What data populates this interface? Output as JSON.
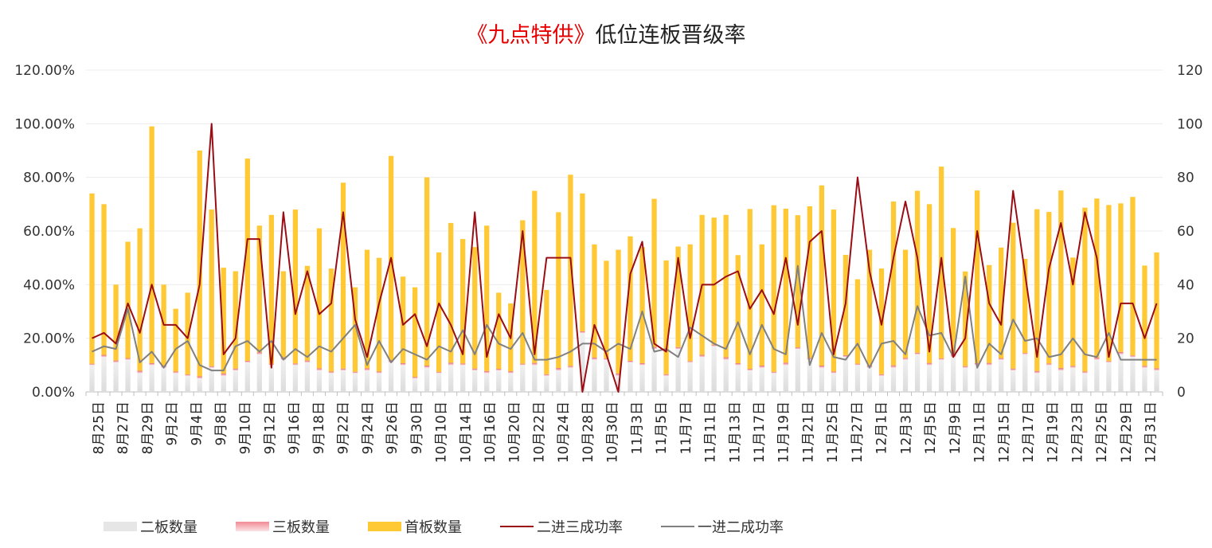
{
  "title": {
    "highlight": "《九点特供》",
    "rest": "低位连板晋级率"
  },
  "colors": {
    "erban": "#e6e6e6",
    "sanban": "#f2a0a6",
    "shouban": "#ffc935",
    "line23": "#9b0d14",
    "line12": "#808080"
  },
  "legend": {
    "erban": "二板数量",
    "sanban": "三板数量",
    "shouban": "首板数量",
    "line23": "二进三成功率",
    "line12": "一进二成功率"
  },
  "chart_data": {
    "type": "bar",
    "stacked": true,
    "y_left": {
      "min": 0,
      "max": 1.2,
      "ticks": [
        "0.00%",
        "20.00%",
        "40.00%",
        "60.00%",
        "80.00%",
        "100.00%",
        "120.00%"
      ]
    },
    "y_right": {
      "min": 0,
      "max": 120,
      "ticks": [
        "0",
        "20",
        "40",
        "60",
        "80",
        "100",
        "120"
      ]
    },
    "x_tick_labels": [
      "8月25日",
      "8月27日",
      "8月29日",
      "9月2日",
      "9月4日",
      "9月8日",
      "9月10日",
      "9月12日",
      "9月16日",
      "9月18日",
      "9月22日",
      "9月24日",
      "9月26日",
      "9月30日",
      "10月10日",
      "10月14日",
      "10月16日",
      "10月20日",
      "10月22日",
      "10月24日",
      "10月28日",
      "10月30日",
      "11月3日",
      "11月5日",
      "11月7日",
      "11月11日",
      "11月13日",
      "11月17日",
      "11月19日",
      "11月21日",
      "11月25日",
      "11月27日",
      "12月1日",
      "12月3日",
      "12月5日",
      "12月9日",
      "12月11日",
      "12月15日",
      "12月17日",
      "12月19日",
      "12月23日",
      "12月25日",
      "12月29日",
      "12月31日"
    ],
    "series": [
      {
        "name": "二板数量",
        "kind": "bar",
        "axis": "right",
        "values": [
          10,
          13,
          11,
          12,
          7,
          10,
          9,
          7,
          6,
          5,
          9,
          6,
          8,
          11,
          14,
          10,
          12,
          10,
          11,
          8,
          7,
          8,
          7,
          8,
          7,
          11,
          10,
          5,
          9,
          7,
          10,
          10,
          8,
          7,
          8,
          7,
          10,
          10,
          6,
          8,
          9,
          22,
          12,
          12,
          6,
          11,
          10,
          16,
          6,
          16,
          11,
          13,
          17,
          12,
          10,
          8,
          9,
          7,
          10,
          16,
          12,
          9,
          7,
          13,
          10,
          9,
          6,
          9,
          12,
          14,
          10,
          12,
          13,
          9,
          10,
          10,
          12,
          8,
          14,
          7,
          10,
          8,
          9,
          7,
          12,
          11,
          14,
          13,
          9,
          8
        ]
      },
      {
        "name": "三板数量",
        "kind": "bar",
        "axis": "right",
        "values": [
          0.5,
          0.8,
          0.7,
          0.6,
          0.9,
          0.7,
          0.8,
          0.6,
          0.5,
          0.8,
          0.6,
          0.9,
          0.7,
          0.6,
          0.8,
          0.5,
          0.9,
          0.6,
          0.7,
          0.8,
          0.6,
          0.7,
          0.5,
          0.8,
          0.6,
          0.9,
          0.7,
          0.6,
          0.8,
          0.5,
          0.9,
          0.6,
          0.7,
          0.8,
          0.6,
          0.7,
          0.5,
          0.8,
          0.6,
          0.9,
          0.7,
          0.6,
          0.8,
          0.5,
          0.9,
          0.6,
          0.7,
          0.8,
          0.6,
          0.7,
          0.5,
          0.8,
          0.6,
          0.9,
          0.7,
          0.6,
          0.8,
          0.5,
          0.9,
          0.6,
          0.7,
          0.8,
          0.6,
          0.7,
          0.5,
          0.8,
          0.6,
          0.9,
          0.7,
          0.6,
          0.8,
          0.5,
          0.9,
          0.6,
          0.7,
          0.8,
          0.6,
          0.7,
          0.5,
          0.8,
          0.6,
          0.9,
          0.7,
          0.6,
          0.8,
          0.5,
          0.9,
          0.6,
          0.7,
          0.8
        ]
      },
      {
        "name": "首板数量",
        "kind": "bar",
        "axis": "right",
        "values": [
          63.5,
          56.2,
          28.3,
          43.4,
          53.1,
          88.3,
          30.2,
          23.4,
          30.5,
          84.2,
          58.4,
          39.4,
          36.3,
          75.4,
          47.2,
          55.5,
          32.1,
          57.4,
          35.3,
          52.2,
          38.4,
          69.3,
          31.5,
          44.2,
          42.4,
          76.1,
          32.3,
          33.4,
          70.2,
          44.5,
          52.1,
          46.4,
          45.3,
          54.2,
          28.4,
          25.3,
          53.5,
          64.2,
          31.4,
          58.1,
          71.3,
          51.4,
          42.2,
          36.4,
          46.1,
          46.4,
          43.3,
          55.2,
          42.4,
          37.5,
          43.5,
          52.2,
          47.4,
          53.1,
          40.3,
          59.6,
          45.2,
          62.1,
          57.4,
          49.3,
          56.5,
          67.2,
          60.4,
          37.4,
          31.5,
          43.2,
          39.4,
          61.1,
          40.3,
          60.4,
          59.2,
          71.5,
          47.2,
          35.3,
          64.4,
          36.5,
          41.2,
          54.4,
          35.1,
          60.3,
          56.5,
          66.2,
          40.4,
          61.1,
          59.3,
          58.2,
          55.4,
          59.1,
          37.4,
          43.2
        ]
      },
      {
        "name": "二进三成功率",
        "kind": "line",
        "axis": "left",
        "values": [
          0.2,
          0.22,
          0.18,
          0.33,
          0.22,
          0.4,
          0.25,
          0.25,
          0.2,
          0.4,
          1.0,
          0.14,
          0.2,
          0.57,
          0.57,
          0.09,
          0.67,
          0.29,
          0.45,
          0.29,
          0.33,
          0.67,
          0.27,
          0.13,
          0.33,
          0.5,
          0.25,
          0.29,
          0.17,
          0.33,
          0.25,
          0.14,
          0.67,
          0.13,
          0.29,
          0.2,
          0.6,
          0.14,
          0.5,
          0.5,
          0.5,
          0.0,
          0.25,
          0.14,
          0.0,
          0.44,
          0.56,
          0.18,
          0.15,
          0.5,
          0.2,
          0.4,
          0.4,
          0.43,
          0.45,
          0.31,
          0.38,
          0.29,
          0.5,
          0.25,
          0.56,
          0.6,
          0.14,
          0.33,
          0.8,
          0.45,
          0.25,
          0.5,
          0.71,
          0.5,
          0.15,
          0.5,
          0.13,
          0.2,
          0.6,
          0.33,
          0.25,
          0.75,
          0.44,
          0.13,
          0.46,
          0.63,
          0.4,
          0.67,
          0.5,
          0.13,
          0.33,
          0.33,
          0.2,
          0.33
        ]
      },
      {
        "name": "一进二成功率",
        "kind": "line",
        "axis": "left",
        "values": [
          0.15,
          0.17,
          0.16,
          0.31,
          0.11,
          0.15,
          0.09,
          0.16,
          0.19,
          0.1,
          0.08,
          0.08,
          0.17,
          0.19,
          0.15,
          0.19,
          0.12,
          0.16,
          0.13,
          0.17,
          0.15,
          0.2,
          0.25,
          0.1,
          0.19,
          0.11,
          0.16,
          0.14,
          0.12,
          0.17,
          0.15,
          0.23,
          0.14,
          0.25,
          0.18,
          0.16,
          0.22,
          0.12,
          0.12,
          0.13,
          0.15,
          0.18,
          0.18,
          0.15,
          0.18,
          0.16,
          0.3,
          0.15,
          0.16,
          0.13,
          0.24,
          0.21,
          0.18,
          0.16,
          0.26,
          0.14,
          0.25,
          0.16,
          0.14,
          0.47,
          0.1,
          0.22,
          0.13,
          0.12,
          0.18,
          0.09,
          0.18,
          0.19,
          0.14,
          0.32,
          0.21,
          0.22,
          0.13,
          0.43,
          0.09,
          0.18,
          0.14,
          0.27,
          0.19,
          0.2,
          0.13,
          0.14,
          0.2,
          0.14,
          0.13,
          0.22,
          0.12,
          0.12,
          0.12,
          0.12
        ]
      }
    ],
    "grid": true,
    "legend_position": "bottom"
  }
}
